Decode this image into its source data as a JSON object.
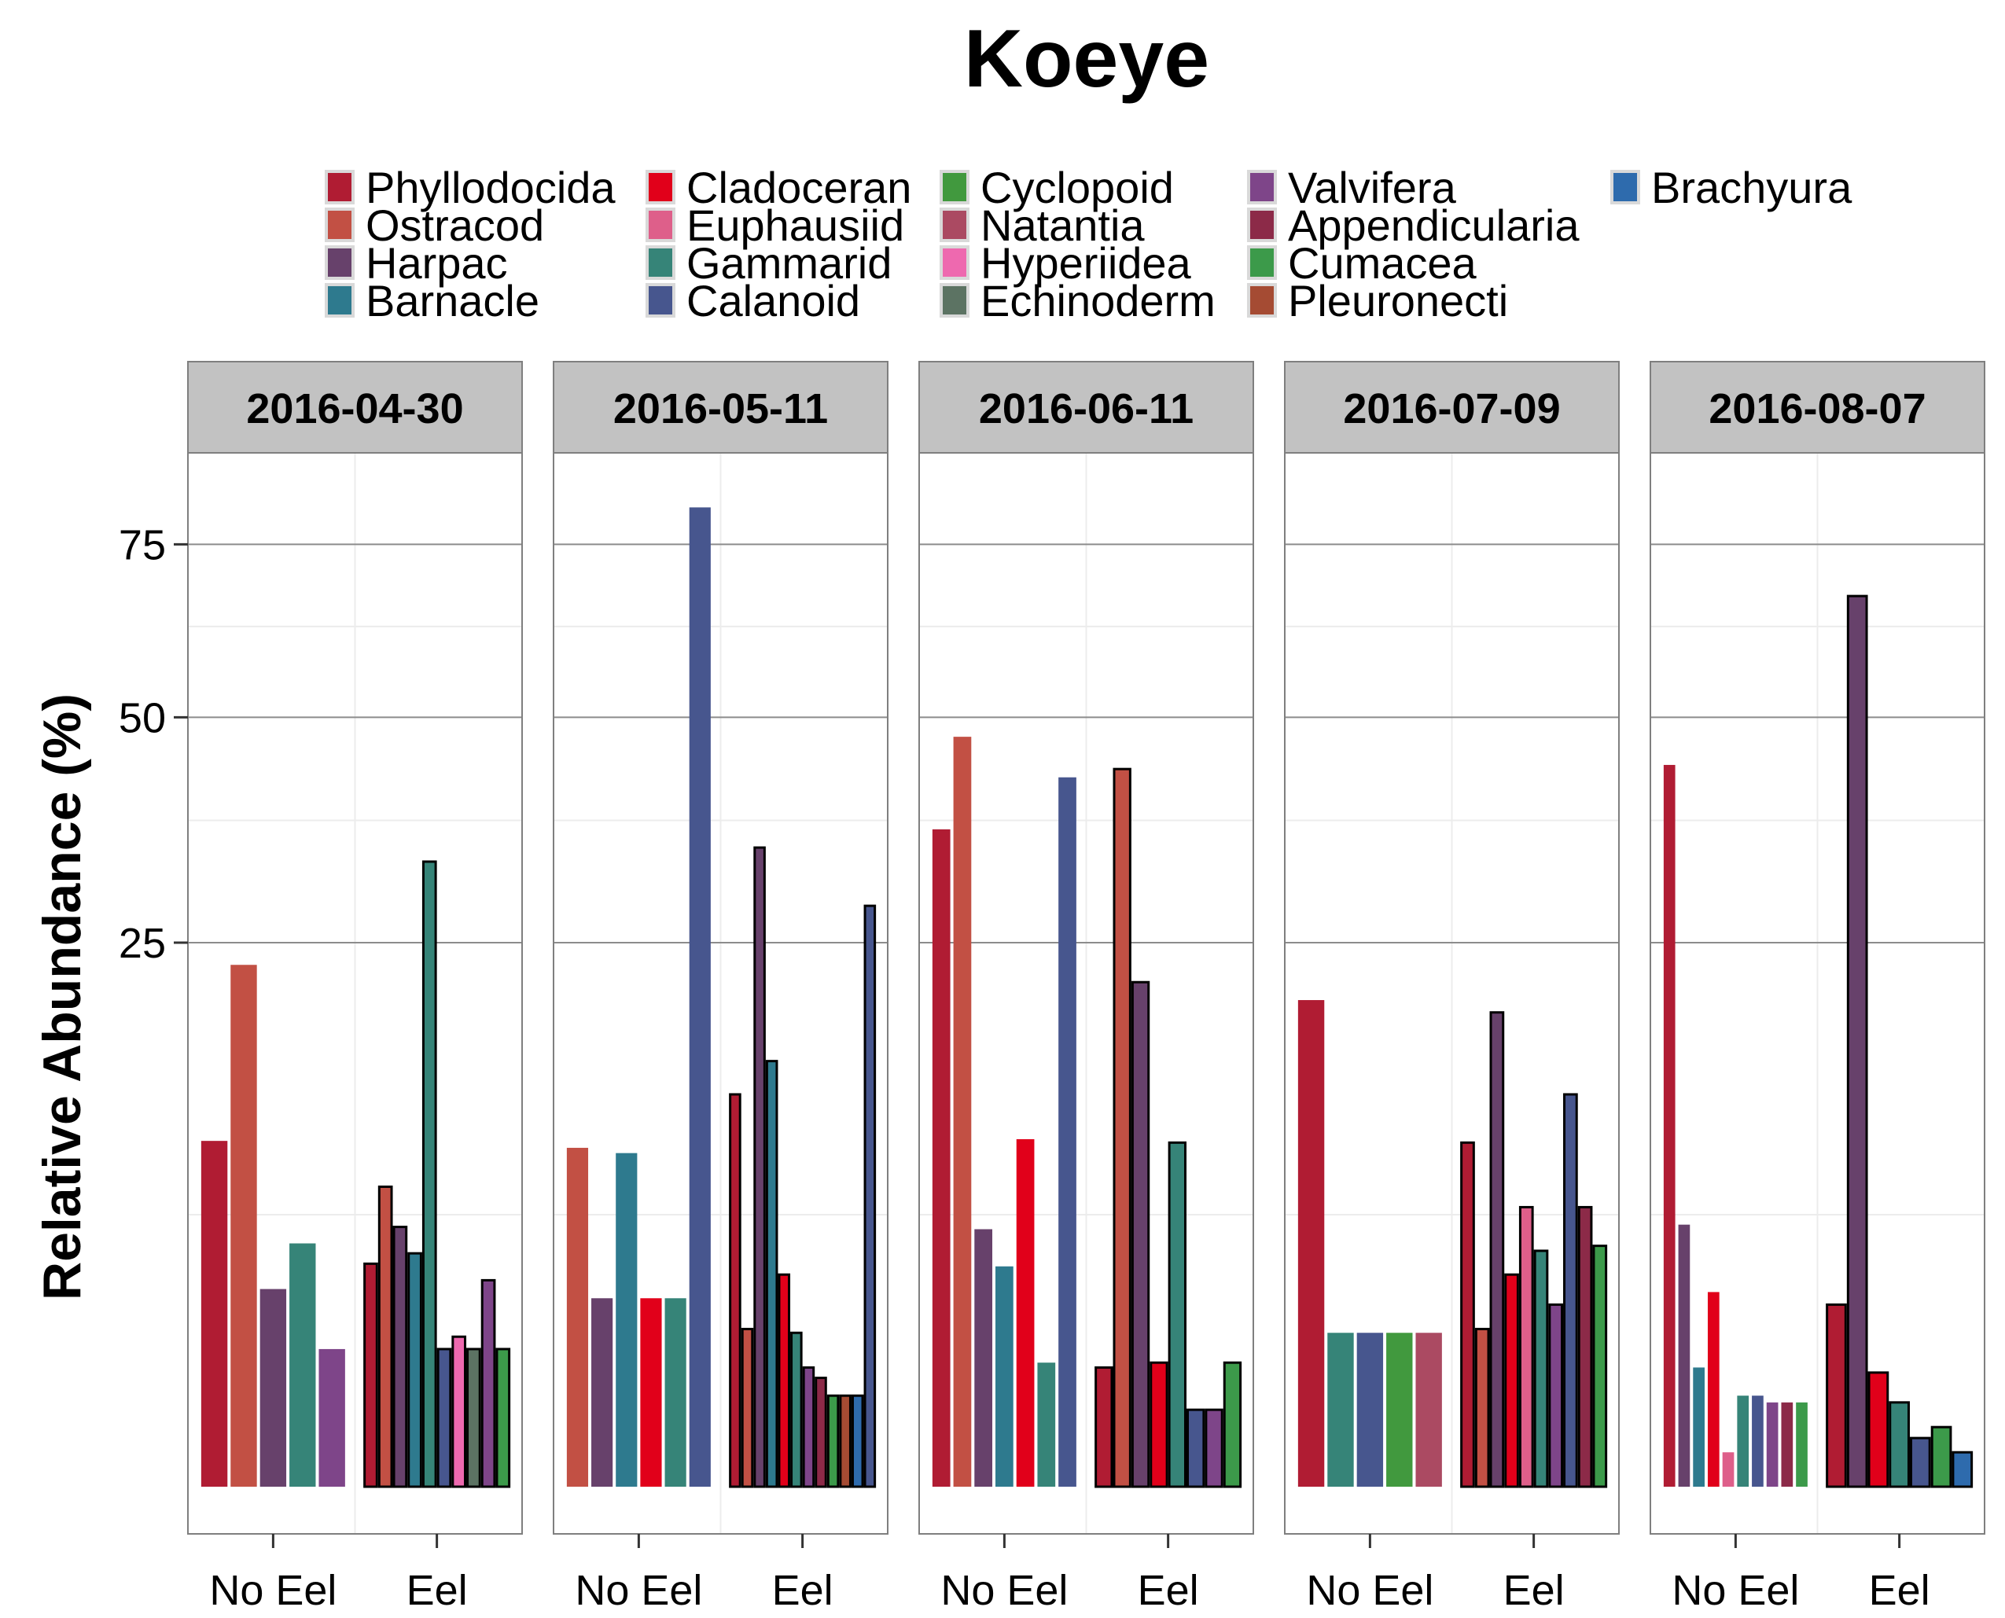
{
  "chart_data": {
    "type": "bar",
    "title": "Koeye",
    "ylabel": "Relative Abundance (%)",
    "xlabel": "",
    "y_scale": "sqrt",
    "ylim": [
      0,
      90
    ],
    "y_ticks": [
      25,
      50,
      75
    ],
    "grid": true,
    "legend_position": "top",
    "categories": [
      "No Eel",
      "Eel"
    ],
    "panels": [
      {
        "label": "2016-04-30",
        "groups": [
          {
            "category": "No Eel",
            "bars": [
              {
                "taxon": "Phyllodocida",
                "value": 10.1
              },
              {
                "taxon": "Ostracod",
                "value": 23.0
              },
              {
                "taxon": "Harpac",
                "value": 3.3
              },
              {
                "taxon": "Gammarid",
                "value": 5.0
              },
              {
                "taxon": "Valvifera",
                "value": 1.6
              }
            ]
          },
          {
            "category": "Eel",
            "bars": [
              {
                "taxon": "Phyllodocida",
                "value": 4.2
              },
              {
                "taxon": "Ostracod",
                "value": 7.6
              },
              {
                "taxon": "Harpac",
                "value": 5.7
              },
              {
                "taxon": "Barnacle",
                "value": 4.6
              },
              {
                "taxon": "Gammarid",
                "value": 33.0
              },
              {
                "taxon": "Calanoid",
                "value": 1.6
              },
              {
                "taxon": "Hyperiidea",
                "value": 1.9
              },
              {
                "taxon": "Echinoderm",
                "value": 1.6
              },
              {
                "taxon": "Valvifera",
                "value": 3.6
              },
              {
                "taxon": "Cumacea",
                "value": 1.6
              }
            ]
          }
        ]
      },
      {
        "label": "2016-05-11",
        "groups": [
          {
            "category": "No Eel",
            "bars": [
              {
                "taxon": "Ostracod",
                "value": 9.7
              },
              {
                "taxon": "Harpac",
                "value": 3.0
              },
              {
                "taxon": "Barnacle",
                "value": 9.4
              },
              {
                "taxon": "Cladoceran",
                "value": 3.0
              },
              {
                "taxon": "Gammarid",
                "value": 3.0
              },
              {
                "taxon": "Calanoid",
                "value": 81.0
              }
            ]
          },
          {
            "category": "Eel",
            "bars": [
              {
                "taxon": "Phyllodocida",
                "value": 13.0
              },
              {
                "taxon": "Ostracod",
                "value": 2.1
              },
              {
                "taxon": "Harpac",
                "value": 34.5
              },
              {
                "taxon": "Barnacle",
                "value": 15.3
              },
              {
                "taxon": "Cladoceran",
                "value": 3.8
              },
              {
                "taxon": "Gammarid",
                "value": 2.0
              },
              {
                "taxon": "Valvifera",
                "value": 1.2
              },
              {
                "taxon": "Appendicularia",
                "value": 1.0
              },
              {
                "taxon": "Cumacea",
                "value": 0.7
              },
              {
                "taxon": "Pleuronecti",
                "value": 0.7
              },
              {
                "taxon": "Brachyura",
                "value": 0.7
              },
              {
                "taxon": "Calanoid",
                "value": 28.5
              }
            ]
          }
        ]
      },
      {
        "label": "2016-06-11",
        "groups": [
          {
            "category": "No Eel",
            "bars": [
              {
                "taxon": "Phyllodocida",
                "value": 36.5
              },
              {
                "taxon": "Ostracod",
                "value": 47.5
              },
              {
                "taxon": "Harpac",
                "value": 5.6
              },
              {
                "taxon": "Barnacle",
                "value": 4.1
              },
              {
                "taxon": "Cladoceran",
                "value": 10.2
              },
              {
                "taxon": "Gammarid",
                "value": 1.3
              },
              {
                "taxon": "Calanoid",
                "value": 42.5
              }
            ]
          },
          {
            "category": "Eel",
            "bars": [
              {
                "taxon": "Phyllodocida",
                "value": 1.2
              },
              {
                "taxon": "Ostracod",
                "value": 43.5
              },
              {
                "taxon": "Harpac",
                "value": 21.5
              },
              {
                "taxon": "Cladoceran",
                "value": 1.3
              },
              {
                "taxon": "Gammarid",
                "value": 10.0
              },
              {
                "taxon": "Calanoid",
                "value": 0.5
              },
              {
                "taxon": "Valvifera",
                "value": 0.5
              },
              {
                "taxon": "Cumacea",
                "value": 1.3
              }
            ]
          }
        ]
      },
      {
        "label": "2016-07-09",
        "groups": [
          {
            "category": "No Eel",
            "bars": [
              {
                "taxon": "Phyllodocida",
                "value": 20.0
              },
              {
                "taxon": "Gammarid",
                "value": 2.0
              },
              {
                "taxon": "Calanoid",
                "value": 2.0
              },
              {
                "taxon": "Cyclopoid",
                "value": 2.0
              },
              {
                "taxon": "Natantia",
                "value": 2.0
              }
            ]
          },
          {
            "category": "Eel",
            "bars": [
              {
                "taxon": "Phyllodocida",
                "value": 10.0
              },
              {
                "taxon": "Ostracod",
                "value": 2.1
              },
              {
                "taxon": "Harpac",
                "value": 19.0
              },
              {
                "taxon": "Cladoceran",
                "value": 3.8
              },
              {
                "taxon": "Euphausiid",
                "value": 6.6
              },
              {
                "taxon": "Gammarid",
                "value": 4.7
              },
              {
                "taxon": "Valvifera",
                "value": 2.8
              },
              {
                "taxon": "Calanoid",
                "value": 13.0
              },
              {
                "taxon": "Appendicularia",
                "value": 6.6
              },
              {
                "taxon": "Cumacea",
                "value": 4.9
              }
            ]
          }
        ]
      },
      {
        "label": "2016-08-07",
        "groups": [
          {
            "category": "No Eel",
            "bars": [
              {
                "taxon": "Phyllodocida",
                "value": 44.0
              },
              {
                "taxon": "Harpac",
                "value": 5.8
              },
              {
                "taxon": "Barnacle",
                "value": 1.2
              },
              {
                "taxon": "Cladoceran",
                "value": 3.2
              },
              {
                "taxon": "Euphausiid",
                "value": 0.1
              },
              {
                "taxon": "Gammarid",
                "value": 0.7
              },
              {
                "taxon": "Calanoid",
                "value": 0.7
              },
              {
                "taxon": "Valvifera",
                "value": 0.6
              },
              {
                "taxon": "Appendicularia",
                "value": 0.6
              },
              {
                "taxon": "Cumacea",
                "value": 0.6
              }
            ]
          },
          {
            "category": "Eel",
            "bars": [
              {
                "taxon": "Phyllodocida",
                "value": 2.8
              },
              {
                "taxon": "Harpac",
                "value": 67.0
              },
              {
                "taxon": "Cladoceran",
                "value": 1.1
              },
              {
                "taxon": "Gammarid",
                "value": 0.6
              },
              {
                "taxon": "Calanoid",
                "value": 0.2
              },
              {
                "taxon": "Cumacea",
                "value": 0.3
              },
              {
                "taxon": "Brachyura",
                "value": 0.1
              }
            ]
          }
        ]
      }
    ],
    "legend": [
      {
        "name": "Phyllodocida",
        "color": "#B01C33"
      },
      {
        "name": "Ostracod",
        "color": "#C25044"
      },
      {
        "name": "Harpac",
        "color": "#67416B"
      },
      {
        "name": "Barnacle",
        "color": "#2E7A8E"
      },
      {
        "name": "Cladoceran",
        "color": "#E1001A"
      },
      {
        "name": "Euphausiid",
        "color": "#DE5F8A"
      },
      {
        "name": "Gammarid",
        "color": "#368478"
      },
      {
        "name": "Calanoid",
        "color": "#47568E"
      },
      {
        "name": "Cyclopoid",
        "color": "#41993E"
      },
      {
        "name": "Natantia",
        "color": "#AB4A62"
      },
      {
        "name": "Hyperiidea",
        "color": "#EE69AF"
      },
      {
        "name": "Echinoderm",
        "color": "#5C7363"
      },
      {
        "name": "Valvifera",
        "color": "#7E4589"
      },
      {
        "name": "Appendicularia",
        "color": "#8C2A48"
      },
      {
        "name": "Cumacea",
        "color": "#3C9A4A"
      },
      {
        "name": "Pleuronecti",
        "color": "#A54B33"
      },
      {
        "name": "Brachyura",
        "color": "#2E6BAD"
      }
    ]
  }
}
